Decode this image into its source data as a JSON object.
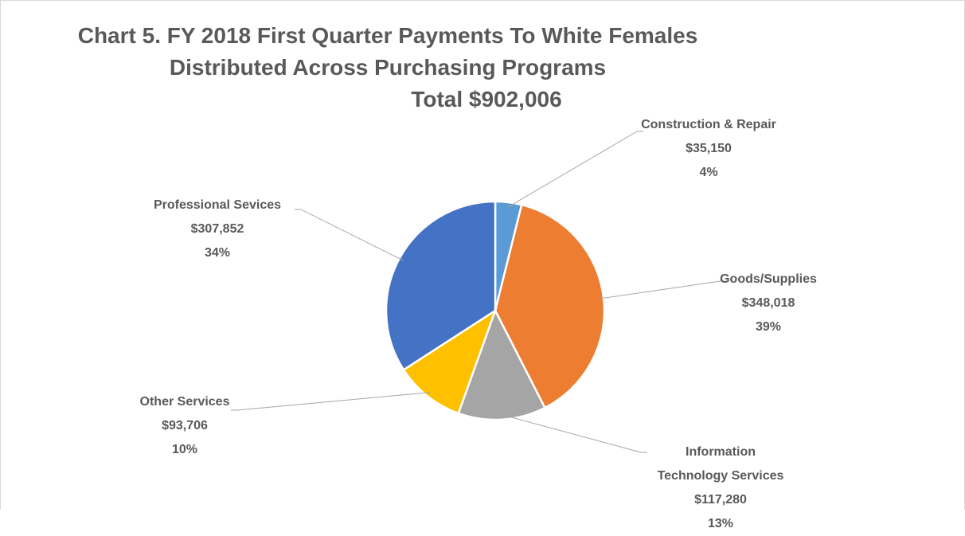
{
  "chart_data": {
    "type": "pie",
    "title": [
      "Chart 5. FY 2018 First Quarter Payments To White Females",
      "Distributed Across Purchasing Programs",
      "Total $902,006"
    ],
    "categories": [
      "Construction & Repair",
      "Goods/Supplies",
      "Information Technology Services",
      "Other Services",
      "Professional Sevices"
    ],
    "values": [
      35150,
      348018,
      117280,
      93706,
      307852
    ],
    "value_labels": [
      "$35,150",
      "$348,018",
      "$117,280",
      "$93,706",
      "$307,852"
    ],
    "percent_labels": [
      "4%",
      "39%",
      "13%",
      "10%",
      "34%"
    ],
    "colors": [
      "#5b9bd5",
      "#ed7d31",
      "#a5a5a5",
      "#ffc000",
      "#4472c4"
    ]
  }
}
